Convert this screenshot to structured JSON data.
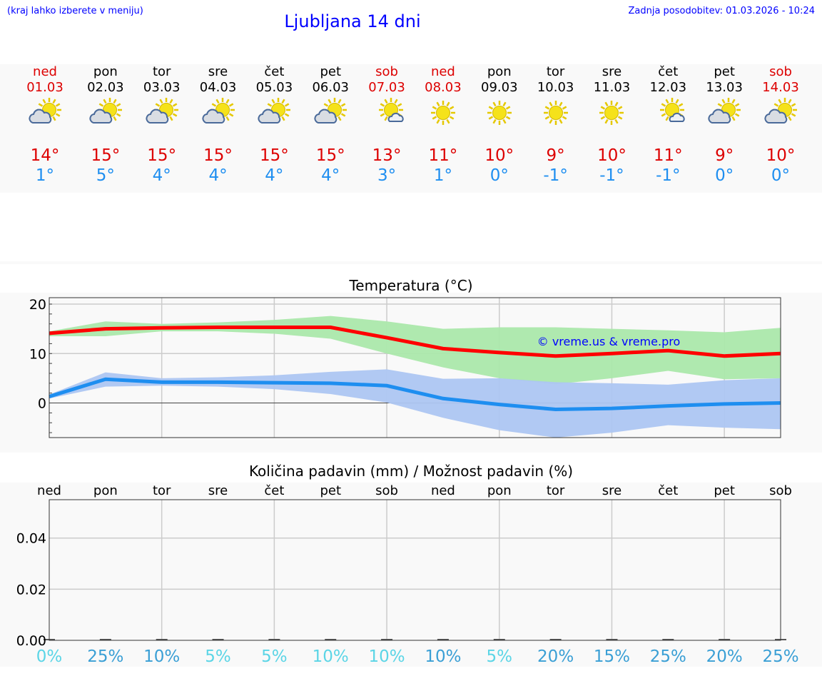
{
  "header": {
    "hint": "(kraj lahko izberete v meniju)",
    "title": "Ljubljana 14 dni",
    "updated": "Zadnja posodobitev: 01.03.2026 - 10:24"
  },
  "days": [
    {
      "name": "ned",
      "date": "01.03",
      "max": "14°",
      "min": "1°",
      "weekend": true,
      "icon": "sun-cloud-icon"
    },
    {
      "name": "pon",
      "date": "02.03",
      "max": "15°",
      "min": "5°",
      "weekend": false,
      "icon": "sun-cloud-icon"
    },
    {
      "name": "tor",
      "date": "03.03",
      "max": "15°",
      "min": "4°",
      "weekend": false,
      "icon": "sun-cloud-icon"
    },
    {
      "name": "sre",
      "date": "04.03",
      "max": "15°",
      "min": "4°",
      "weekend": false,
      "icon": "sun-cloud-icon"
    },
    {
      "name": "čet",
      "date": "05.03",
      "max": "15°",
      "min": "4°",
      "weekend": false,
      "icon": "sun-cloud-icon"
    },
    {
      "name": "pet",
      "date": "06.03",
      "max": "15°",
      "min": "4°",
      "weekend": false,
      "icon": "sun-cloud-icon"
    },
    {
      "name": "sob",
      "date": "07.03",
      "max": "13°",
      "min": "3°",
      "weekend": true,
      "icon": "sun-small-cloud-icon"
    },
    {
      "name": "ned",
      "date": "08.03",
      "max": "11°",
      "min": "1°",
      "weekend": true,
      "icon": "sun-icon"
    },
    {
      "name": "pon",
      "date": "09.03",
      "max": "10°",
      "min": "0°",
      "weekend": false,
      "icon": "sun-icon"
    },
    {
      "name": "tor",
      "date": "10.03",
      "max": "9°",
      "min": "-1°",
      "weekend": false,
      "icon": "sun-icon"
    },
    {
      "name": "sre",
      "date": "11.03",
      "max": "10°",
      "min": "-1°",
      "weekend": false,
      "icon": "sun-icon"
    },
    {
      "name": "čet",
      "date": "12.03",
      "max": "11°",
      "min": "-1°",
      "weekend": false,
      "icon": "sun-small-cloud-icon"
    },
    {
      "name": "pet",
      "date": "13.03",
      "max": "9°",
      "min": "0°",
      "weekend": false,
      "icon": "sun-cloud-icon"
    },
    {
      "name": "sob",
      "date": "14.03",
      "max": "10°",
      "min": "0°",
      "weekend": true,
      "icon": "sun-cloud-icon"
    }
  ],
  "colors": {
    "weekend": "#dd0000",
    "max": "#dd0000",
    "min": "#1e8ef0",
    "precip_light": "#5bd5e6",
    "precip_dark": "#3a9fd5"
  },
  "chart_data": [
    {
      "type": "line",
      "title": "Temperatura (°C)",
      "yticks": [
        "20",
        "10",
        "0"
      ],
      "ylim": [
        -7,
        21.3
      ],
      "watermark": "© vreme.us & vreme.pro",
      "series": [
        {
          "color": "#ff0000",
          "values": [
            14.1,
            15,
            15.2,
            15.3,
            15.3,
            15.3,
            13.2,
            11,
            10.2,
            9.5,
            10,
            10.6,
            9.5,
            10
          ],
          "band_upper": [
            14.5,
            16.5,
            16,
            16.3,
            16.8,
            17.6,
            16.5,
            15,
            15.3,
            15.3,
            15,
            14.7,
            14.3,
            15.2
          ],
          "band_lower": [
            13.5,
            13.5,
            14.5,
            14.5,
            14,
            13,
            10,
            7.2,
            5,
            3.8,
            5,
            6.5,
            4.8,
            5
          ],
          "band_color": "#abe8ab"
        },
        {
          "color": "#1e8ef0",
          "values": [
            1.3,
            4.8,
            4.2,
            4.2,
            4.1,
            4,
            3.5,
            0.9,
            -0.3,
            -1.3,
            -1.1,
            -0.6,
            -0.2,
            0
          ],
          "band_upper": [
            1.7,
            6.2,
            5,
            5.2,
            5.6,
            6.3,
            6.8,
            4.9,
            5,
            4.2,
            4,
            3.7,
            4.6,
            5
          ],
          "band_lower": [
            0.9,
            3.3,
            3.5,
            3.3,
            2.8,
            1.8,
            0.1,
            -3,
            -5.5,
            -7,
            -6,
            -4.5,
            -5,
            -5.3
          ],
          "band_color": "#adc6f2"
        }
      ]
    },
    {
      "type": "bar",
      "title": "Količina padavin (mm) / Možnost padavin (%)",
      "categories": [
        "ned",
        "pon",
        "tor",
        "sre",
        "čet",
        "pet",
        "sob",
        "ned",
        "pon",
        "tor",
        "sre",
        "čet",
        "pet",
        "sob"
      ],
      "yticks": [
        "0.04",
        "0.02",
        "0.00"
      ],
      "ylim": [
        0,
        0.055
      ],
      "values": [
        0,
        0,
        0,
        0,
        0,
        0,
        0,
        0,
        0,
        0,
        0,
        0,
        0,
        0
      ],
      "probability": [
        "0%",
        "25%",
        "10%",
        "5%",
        "5%",
        "10%",
        "10%",
        "10%",
        "5%",
        "20%",
        "15%",
        "25%",
        "20%",
        "25%"
      ],
      "probability_dark": [
        false,
        true,
        true,
        false,
        false,
        false,
        false,
        true,
        false,
        true,
        true,
        true,
        true,
        true
      ]
    }
  ]
}
